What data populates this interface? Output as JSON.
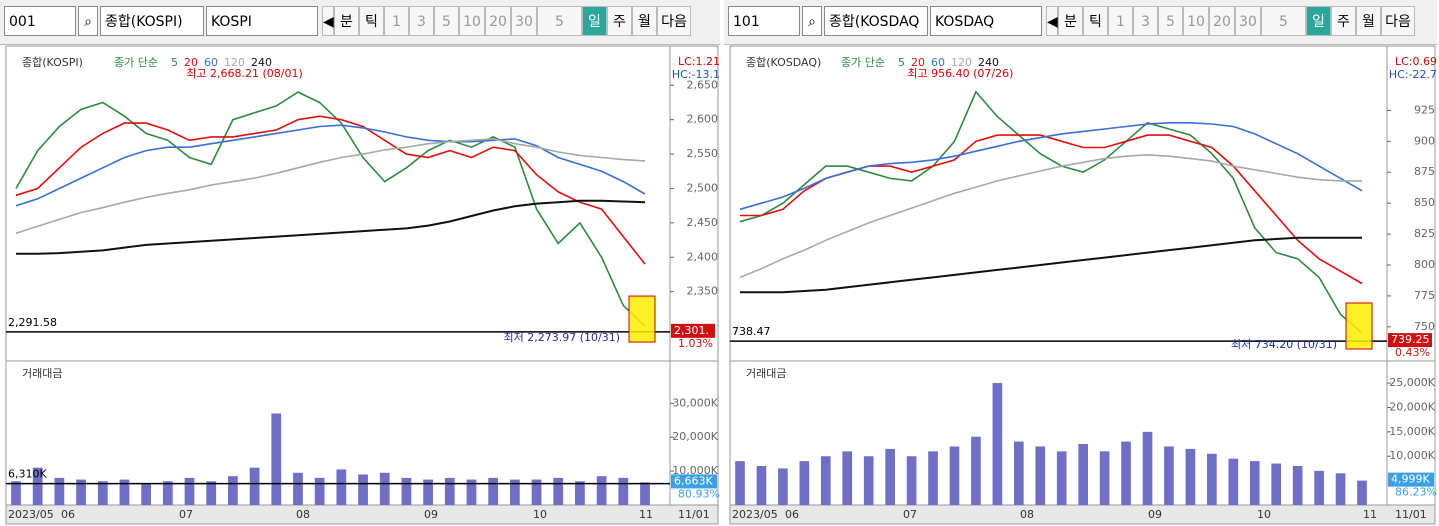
{
  "panels": [
    {
      "toolbar": {
        "code": "001",
        "name": "종합(KOSPI)",
        "market": "KOSPI",
        "buttons": [
          "분",
          "틱",
          "1",
          "3",
          "5",
          "10",
          "20",
          "30",
          "5",
          "일",
          "주",
          "월",
          "다음"
        ]
      },
      "price": {
        "title": "종합(KOSPI)",
        "legend_label": "종가 단순",
        "lc": "LC:1.21",
        "hc": "HC:-13.1",
        "ylim": [
          2255,
          2694
        ],
        "yticks": [
          {
            "value": 2350,
            "label": "2,350"
          },
          {
            "value": 2400,
            "label": "2,400"
          },
          {
            "value": 2450,
            "label": "2,450"
          },
          {
            "value": 2500,
            "label": "2,500"
          },
          {
            "value": 2550,
            "label": "2,550"
          },
          {
            "value": 2600,
            "label": "2,600"
          },
          {
            "value": 2650,
            "label": "2,650"
          }
        ],
        "ma": [
          {
            "period": 5,
            "color": "#2e8b3e",
            "values": [
              2500,
              2555,
              2590,
              2615,
              2625,
              2605,
              2580,
              2570,
              2545,
              2535,
              2600,
              2610,
              2620,
              2640,
              2625,
              2595,
              2545,
              2510,
              2530,
              2555,
              2570,
              2560,
              2575,
              2560,
              2470,
              2420,
              2450,
              2400,
              2330,
              2300
            ]
          },
          {
            "period": 20,
            "color": "#e01010",
            "values": [
              2490,
              2500,
              2530,
              2560,
              2580,
              2595,
              2595,
              2585,
              2570,
              2575,
              2575,
              2580,
              2585,
              2600,
              2605,
              2600,
              2590,
              2570,
              2550,
              2545,
              2555,
              2545,
              2560,
              2555,
              2520,
              2495,
              2480,
              2470,
              2430,
              2390
            ]
          },
          {
            "period": 60,
            "color": "#3a6fd8",
            "values": [
              2475,
              2485,
              2500,
              2515,
              2530,
              2545,
              2555,
              2560,
              2560,
              2565,
              2570,
              2575,
              2580,
              2585,
              2590,
              2592,
              2588,
              2582,
              2575,
              2570,
              2568,
              2568,
              2570,
              2572,
              2562,
              2545,
              2535,
              2525,
              2510,
              2492
            ]
          },
          {
            "period": 120,
            "color": "#a8a8a8",
            "values": [
              2435,
              2445,
              2455,
              2465,
              2472,
              2480,
              2487,
              2493,
              2498,
              2505,
              2510,
              2515,
              2522,
              2530,
              2538,
              2545,
              2550,
              2556,
              2560,
              2565,
              2568,
              2570,
              2572,
              2565,
              2560,
              2553,
              2548,
              2545,
              2542,
              2540
            ]
          },
          {
            "period": 240,
            "color": "#111111",
            "values": [
              2405,
              2405,
              2406,
              2408,
              2410,
              2414,
              2418,
              2420,
              2422,
              2424,
              2426,
              2428,
              2430,
              2432,
              2434,
              2436,
              2438,
              2440,
              2442,
              2446,
              2452,
              2460,
              2468,
              2474,
              2478,
              2480,
              2482,
              2482,
              2481,
              2480
            ]
          }
        ],
        "hline": {
          "value": 2291.58,
          "label": "2,291.58"
        },
        "high_note": "최고 2,668.21 (08/01)",
        "low_note": "최저 2,273.97 (10/31)",
        "current": "2,301.",
        "change": "1.03%"
      },
      "volume": {
        "title": "거래대금",
        "ylim": [
          0,
          41000
        ],
        "color": "#6f6fc8",
        "yticks": [
          {
            "value": 10000,
            "label": "10,000K"
          },
          {
            "value": 20000,
            "label": "20,000K"
          },
          {
            "value": 30000,
            "label": "30,000K"
          }
        ],
        "values": [
          7000,
          11000,
          8000,
          7500,
          7000,
          7500,
          6500,
          7000,
          8000,
          7000,
          8500,
          11000,
          27000,
          9500,
          8000,
          10500,
          9000,
          9500,
          8000,
          7500,
          8000,
          7500,
          8000,
          7500,
          7500,
          8000,
          7000,
          8500,
          8000,
          6663
        ],
        "hline": {
          "value": 6310,
          "label": "6,310K"
        },
        "current": "6,663K",
        "ratio": "80.93%"
      },
      "dates": [
        "2023/05",
        "06",
        "07",
        "08",
        "09",
        "10",
        "11",
        "11/01"
      ]
    },
    {
      "toolbar": {
        "code": "101",
        "name": "종합(KOSDAQ",
        "market": "KOSDAQ",
        "buttons": [
          "분",
          "틱",
          "1",
          "3",
          "5",
          "10",
          "20",
          "30",
          "5",
          "일",
          "주",
          "월",
          "다음"
        ]
      },
      "price": {
        "title": "종합(KOSDAQ)",
        "legend_label": "종가 단순",
        "lc": "LC:0.69",
        "hc": "HC:-22.7",
        "ylim": [
          725.6,
          969.8
        ],
        "yticks": [
          750,
          775,
          800,
          825,
          850,
          875,
          900,
          925
        ],
        "ma": [
          {
            "period": 5,
            "color": "#2e8b3e",
            "values": [
              835,
              840,
              850,
              865,
              880,
              880,
              875,
              870,
              868,
              880,
              900,
              940,
              920,
              905,
              890,
              880,
              875,
              885,
              900,
              915,
              910,
              905,
              890,
              870,
              830,
              810,
              805,
              790,
              760,
              745
            ]
          },
          {
            "period": 20,
            "color": "#e01010",
            "values": [
              840,
              840,
              845,
              860,
              870,
              875,
              880,
              880,
              875,
              880,
              885,
              900,
              905,
              905,
              905,
              900,
              895,
              895,
              900,
              905,
              905,
              900,
              895,
              880,
              860,
              840,
              820,
              805,
              795,
              785
            ]
          },
          {
            "period": 60,
            "color": "#3a6fd8",
            "values": [
              845,
              850,
              855,
              862,
              870,
              875,
              880,
              882,
              883,
              885,
              888,
              892,
              896,
              900,
              903,
              906,
              908,
              910,
              912,
              914,
              915,
              915,
              914,
              912,
              906,
              898,
              890,
              880,
              870,
              860
            ]
          },
          {
            "period": 120,
            "color": "#a8a8a8",
            "values": [
              790,
              797,
              805,
              812,
              820,
              827,
              834,
              840,
              846,
              852,
              858,
              863,
              868,
              872,
              876,
              880,
              883,
              886,
              888,
              889,
              888,
              886,
              884,
              880,
              877,
              874,
              871,
              869,
              868,
              868
            ]
          },
          {
            "period": 240,
            "color": "#111111",
            "values": [
              778,
              778,
              778,
              779,
              780,
              782,
              784,
              786,
              788,
              790,
              792,
              794,
              796,
              798,
              800,
              802,
              804,
              806,
              808,
              810,
              812,
              814,
              816,
              818,
              820,
              821,
              822,
              822,
              822,
              822
            ]
          }
        ],
        "hline": {
          "value": 738.47,
          "label": "738.47"
        },
        "high_note": "최고 956.40 (07/26)",
        "low_note": "최저 734.20 (10/31)",
        "current": "739.25",
        "change": "0.43%"
      },
      "volume": {
        "title": "거래대금",
        "ylim": [
          0,
          28500
        ],
        "color": "#6f6fc8",
        "yticks": [
          {
            "value": 10000,
            "label": "10,000K"
          },
          {
            "value": 15000,
            "label": "15,000K"
          },
          {
            "value": 20000,
            "label": "20,000K"
          },
          {
            "value": 25000,
            "label": "25,000K"
          }
        ],
        "values": [
          9000,
          8000,
          7500,
          9000,
          10000,
          11000,
          10000,
          11500,
          10000,
          11000,
          12000,
          14000,
          25000,
          13000,
          12000,
          11000,
          12500,
          11000,
          13000,
          15000,
          12000,
          11500,
          10500,
          9500,
          9000,
          8500,
          8000,
          7000,
          6500,
          4999
        ],
        "current": "4,999K",
        "ratio": "86.23%"
      },
      "dates": [
        "2023/05",
        "06",
        "07",
        "08",
        "09",
        "10",
        "11",
        "11/01"
      ]
    }
  ]
}
